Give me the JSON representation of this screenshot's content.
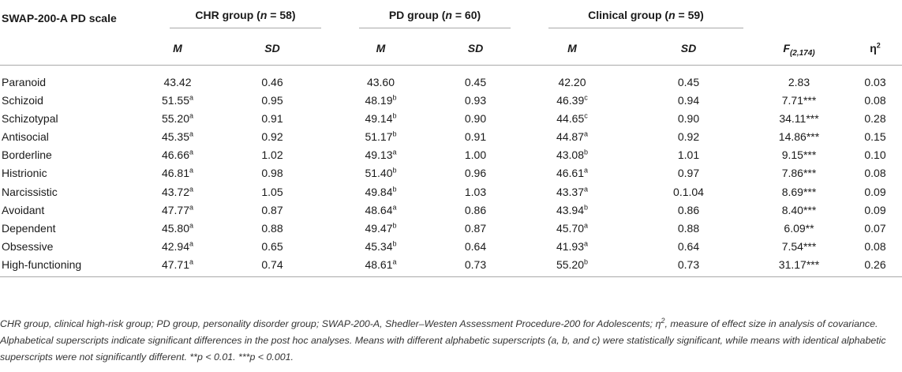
{
  "header": {
    "scale_label": "SWAP-200-A PD scale",
    "groups": [
      {
        "name": "CHR group (",
        "n_label": "n",
        "n_rest": " = 58)"
      },
      {
        "name": "PD group (",
        "n_label": "n",
        "n_rest": " = 60)"
      },
      {
        "name": "Clinical group (",
        "n_label": "n",
        "n_rest": " = 59)"
      }
    ],
    "m_label": "M",
    "sd_label": "SD",
    "f_label": "F",
    "f_sub": "(2,174)",
    "eta_label": "η",
    "eta_sup": "2"
  },
  "rows": [
    {
      "scale": "Paranoid",
      "chr_m": "43.42",
      "chr_m_sup": "",
      "chr_sd": "0.46",
      "pd_m": "43.60",
      "pd_m_sup": "",
      "pd_sd": "0.45",
      "cl_m": "42.20",
      "cl_m_sup": "",
      "cl_sd": "0.45",
      "f": "2.83",
      "f_sig": "",
      "eta": "0.03"
    },
    {
      "scale": "Schizoid",
      "chr_m": "51.55",
      "chr_m_sup": "a",
      "chr_sd": "0.95",
      "pd_m": "48.19",
      "pd_m_sup": "b",
      "pd_sd": "0.93",
      "cl_m": "46.39",
      "cl_m_sup": "c",
      "cl_sd": "0.94",
      "f": "7.71",
      "f_sig": "***",
      "eta": "0.08"
    },
    {
      "scale": "Schizotypal",
      "chr_m": "55.20",
      "chr_m_sup": "a",
      "chr_sd": "0.91",
      "pd_m": "49.14",
      "pd_m_sup": "b",
      "pd_sd": "0.90",
      "cl_m": "44.65",
      "cl_m_sup": "c",
      "cl_sd": "0.90",
      "f": "34.11",
      "f_sig": "***",
      "eta": "0.28"
    },
    {
      "scale": "Antisocial",
      "chr_m": "45.35",
      "chr_m_sup": "a",
      "chr_sd": "0.92",
      "pd_m": "51.17",
      "pd_m_sup": "b",
      "pd_sd": "0.91",
      "cl_m": "44.87",
      "cl_m_sup": "a",
      "cl_sd": "0.92",
      "f": "14.86",
      "f_sig": "***",
      "eta": "0.15"
    },
    {
      "scale": "Borderline",
      "chr_m": "46.66",
      "chr_m_sup": "a",
      "chr_sd": "1.02",
      "pd_m": "49.13",
      "pd_m_sup": "a",
      "pd_sd": "1.00",
      "cl_m": "43.08",
      "cl_m_sup": "b",
      "cl_sd": "1.01",
      "f": "9.15",
      "f_sig": "***",
      "eta": "0.10"
    },
    {
      "scale": "Histrionic",
      "chr_m": "46.81",
      "chr_m_sup": "a",
      "chr_sd": "0.98",
      "pd_m": "51.40",
      "pd_m_sup": "b",
      "pd_sd": "0.96",
      "cl_m": "46.61",
      "cl_m_sup": "a",
      "cl_sd": "0.97",
      "f": "7.86",
      "f_sig": "***",
      "eta": "0.08"
    },
    {
      "scale": "Narcissistic",
      "chr_m": "43.72",
      "chr_m_sup": "a",
      "chr_sd": "1.05",
      "pd_m": "49.84",
      "pd_m_sup": "b",
      "pd_sd": "1.03",
      "cl_m": "43.37",
      "cl_m_sup": "a",
      "cl_sd": "0.1.04",
      "f": "8.69",
      "f_sig": "***",
      "eta": "0.09"
    },
    {
      "scale": "Avoidant",
      "chr_m": "47.77",
      "chr_m_sup": "a",
      "chr_sd": "0.87",
      "pd_m": "48.64",
      "pd_m_sup": "a",
      "pd_sd": "0.86",
      "cl_m": "43.94",
      "cl_m_sup": "b",
      "cl_sd": "0.86",
      "f": "8.40",
      "f_sig": "***",
      "eta": "0.09"
    },
    {
      "scale": "Dependent",
      "chr_m": "45.80",
      "chr_m_sup": "a",
      "chr_sd": "0.88",
      "pd_m": "49.47",
      "pd_m_sup": "b",
      "pd_sd": "0.87",
      "cl_m": "45.70",
      "cl_m_sup": "a",
      "cl_sd": "0.88",
      "f": "6.09",
      "f_sig": "**",
      "eta": "0.07"
    },
    {
      "scale": "Obsessive",
      "chr_m": "42.94",
      "chr_m_sup": "a",
      "chr_sd": "0.65",
      "pd_m": "45.34",
      "pd_m_sup": "b",
      "pd_sd": "0.64",
      "cl_m": "41.93",
      "cl_m_sup": "a",
      "cl_sd": "0.64",
      "f": "7.54",
      "f_sig": "***",
      "eta": "0.08"
    },
    {
      "scale": "High-functioning",
      "chr_m": "47.71",
      "chr_m_sup": "a",
      "chr_sd": "0.74",
      "pd_m": "48.61",
      "pd_m_sup": "a",
      "pd_sd": "0.73",
      "cl_m": "55.20",
      "cl_m_sup": "b",
      "cl_sd": "0.73",
      "f": "31.17",
      "f_sig": "***",
      "eta": "0.26"
    }
  ],
  "footnote": {
    "p1": "CHR group, clinical high-risk group; PD group, personality disorder group; SWAP-200-A, Shedler–Westen Assessment Procedure-200 for Adolescents; η",
    "p1_sup": "2",
    "p2": ", measure of effect size in analysis of covariance. Alphabetical superscripts indicate significant differences in the post hoc analyses. Means with different alphabetic superscripts (a, b, and c) were statistically significant, while means with identical alphabetic superscripts were not significantly different. **p < 0.01. ***p < 0.001."
  }
}
